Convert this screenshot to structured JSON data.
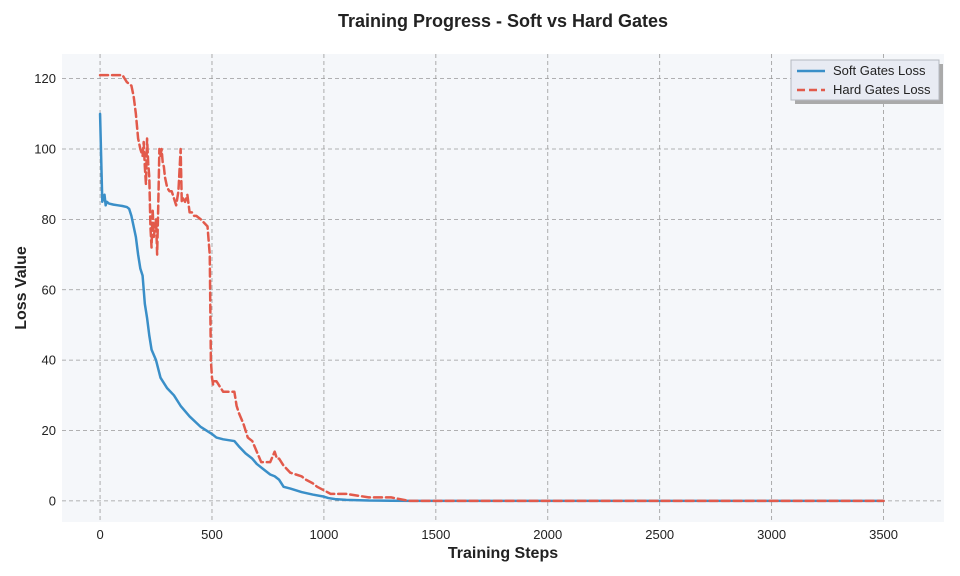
{
  "chart_data": {
    "type": "line",
    "title": "Training Progress - Soft vs Hard Gates",
    "xlabel": "Training Steps",
    "ylabel": "Loss Value",
    "xlim": [
      -170,
      3770
    ],
    "ylim": [
      -6,
      127
    ],
    "xticks": [
      0,
      500,
      1000,
      1500,
      2000,
      2500,
      3000,
      3500
    ],
    "yticks": [
      0,
      20,
      40,
      60,
      80,
      100,
      120
    ],
    "grid": true,
    "legend_position": "top-right",
    "colors": {
      "background": "#f5f7fa",
      "grid": "#999999",
      "soft": "#3a8fc8",
      "hard": "#e25a4b"
    },
    "series": [
      {
        "name": "Soft Gates Loss",
        "style": "solid",
        "color": "#3a8fc8",
        "x": [
          0,
          10,
          20,
          25,
          30,
          40,
          60,
          80,
          100,
          120,
          130,
          140,
          150,
          160,
          170,
          180,
          190,
          200,
          210,
          220,
          230,
          250,
          270,
          300,
          330,
          360,
          400,
          450,
          500,
          520,
          550,
          600,
          620,
          650,
          680,
          700,
          730,
          760,
          780,
          800,
          820,
          850,
          900,
          950,
          1000,
          1020,
          1050,
          1100,
          1200,
          1300,
          1400,
          1500,
          2000,
          2500,
          3000,
          3500
        ],
        "y": [
          110,
          85,
          87,
          84,
          85,
          84.5,
          84.2,
          84,
          83.8,
          83.5,
          83,
          81,
          78,
          75,
          70,
          66,
          64,
          56,
          52,
          47,
          43,
          40,
          35,
          32,
          30,
          27,
          24,
          21,
          19,
          18,
          17.5,
          17,
          15.5,
          13.5,
          12,
          10.5,
          9,
          7.5,
          7,
          6,
          4,
          3.5,
          2.5,
          1.8,
          1.2,
          0.8,
          0.5,
          0.3,
          0.1,
          0.05,
          0,
          0,
          0,
          0,
          0,
          0
        ]
      },
      {
        "name": "Hard Gates Loss",
        "style": "dashed",
        "color": "#e25a4b",
        "x": [
          0,
          30,
          60,
          100,
          110,
          120,
          140,
          150,
          160,
          170,
          180,
          190,
          195,
          200,
          205,
          210,
          215,
          220,
          225,
          230,
          235,
          240,
          250,
          255,
          260,
          265,
          270,
          275,
          280,
          285,
          290,
          300,
          310,
          320,
          330,
          340,
          350,
          360,
          365,
          370,
          380,
          390,
          400,
          410,
          420,
          430,
          450,
          480,
          490,
          495,
          500,
          505,
          510,
          520,
          550,
          600,
          610,
          620,
          640,
          650,
          660,
          680,
          700,
          720,
          740,
          760,
          780,
          790,
          800,
          820,
          850,
          900,
          920,
          950,
          970,
          1000,
          1030,
          1060,
          1100,
          1200,
          1300,
          1380,
          1390,
          1500,
          2000,
          2500,
          3000,
          3500
        ],
        "y": [
          121,
          121,
          121,
          121,
          120,
          119,
          118,
          115,
          110,
          103,
          100,
          98,
          102,
          95,
          90,
          103,
          96,
          92,
          78,
          72,
          83,
          75,
          80,
          70,
          84,
          100,
          98,
          100,
          96,
          95,
          92,
          89,
          88,
          88,
          86,
          84,
          88,
          100,
          85,
          86,
          85,
          87,
          82,
          82,
          81,
          81,
          80,
          78,
          70,
          40,
          35,
          33,
          34,
          34,
          31,
          31,
          27,
          25,
          22,
          20,
          18,
          17,
          14,
          11,
          11,
          11,
          14,
          12,
          12,
          10,
          8,
          7,
          6,
          5,
          4,
          3,
          2,
          2,
          2,
          1,
          1,
          0,
          0,
          0,
          0,
          0,
          0,
          0
        ]
      }
    ]
  }
}
